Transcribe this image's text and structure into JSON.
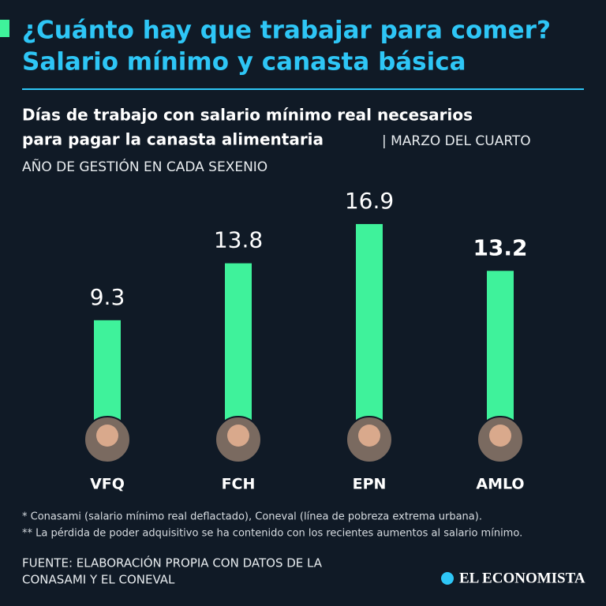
{
  "chart_data": {
    "type": "bar",
    "title": [
      "¿Cuánto hay que trabajar para comer?",
      "Salario mínimo y canasta básica"
    ],
    "subtitle": [
      "Días de trabajo con salario mínimo real necesarios",
      "para pagar la canasta alimentaria"
    ],
    "subtitle_note": [
      "| MARZO DEL CUARTO",
      "AÑO DE GESTIÓN EN CADA SEXENIO"
    ],
    "categories": [
      "VFQ",
      "FCH",
      "EPN",
      "AMLO"
    ],
    "values": [
      9.3,
      13.8,
      16.9,
      13.2
    ],
    "color": "#3ff29b",
    "notes": [
      "* Conasami (salario mínimo real deflactado), Coneval (línea de pobreza extrema urbana).",
      "** La pérdida de poder adquisitivo se ha contenido con los recientes aumentos al salario mínimo."
    ],
    "source": [
      "FUENTE: ELABORACIÓN PROPIA CON DATOS DE LA",
      "CONASAMI Y EL CONEVAL"
    ],
    "brand": "EL ECONOMISTA"
  }
}
